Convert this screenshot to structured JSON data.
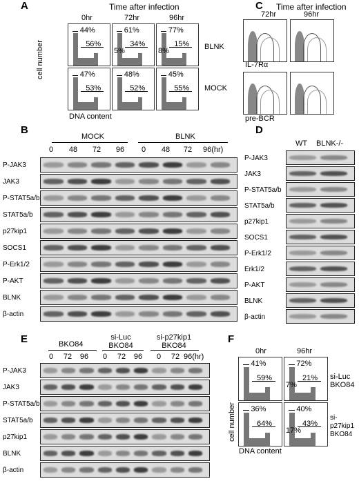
{
  "panel_a": {
    "label": "A",
    "title": "Time after infection",
    "ylabel": "cell number",
    "xlabel": "DNA content",
    "timepoints": [
      "0hr",
      "72hr",
      "96hr"
    ],
    "rows": [
      {
        "name": "BLNK",
        "cells": [
          {
            "top": "44%",
            "mid": "56%",
            "low": ""
          },
          {
            "top": "61%",
            "mid": "34%",
            "low": "5%"
          },
          {
            "top": "77%",
            "mid": "15%",
            "low": "8%"
          }
        ]
      },
      {
        "name": "MOCK",
        "cells": [
          {
            "top": "47%",
            "mid": "53%",
            "low": ""
          },
          {
            "top": "48%",
            "mid": "52%",
            "low": ""
          },
          {
            "top": "45%",
            "mid": "55%",
            "low": ""
          }
        ]
      }
    ]
  },
  "panel_c": {
    "label": "C",
    "title": "Time after infection",
    "timepoints": [
      "72hr",
      "96hr"
    ],
    "markers": [
      "IL-7Rα",
      "pre-BCR"
    ]
  },
  "panel_b": {
    "label": "B",
    "groups": [
      "MOCK",
      "BLNK"
    ],
    "lanes": [
      "0",
      "48",
      "72",
      "96",
      "0",
      "48",
      "72",
      "96(hr)"
    ],
    "proteins": [
      "P-JAK3",
      "JAK3",
      "P-STAT5a/b",
      "STAT5a/b",
      "p27kip1",
      "SOCS1",
      "P-Erk1/2",
      "P-AKT",
      "BLNK",
      "β-actin"
    ]
  },
  "panel_d": {
    "label": "D",
    "lanes": [
      "WT",
      "BLNK-/-"
    ],
    "proteins": [
      "P-JAK3",
      "JAK3",
      "P-STAT5a/b",
      "STAT5a/b",
      "p27kip1",
      "SOCS1",
      "P-Erk1/2",
      "Erk1/2",
      "P-AKT",
      "BLNK",
      "β-actin"
    ]
  },
  "panel_e": {
    "label": "E",
    "groups": [
      "BKO84",
      "si-Luc BKO84",
      "si-p27kip1 BKO84"
    ],
    "lanes": [
      "0",
      "72",
      "96",
      "0",
      "72",
      "96",
      "0",
      "72",
      "96(hr)"
    ],
    "proteins": [
      "P-JAK3",
      "JAK3",
      "P-STAT5a/b",
      "STAT5a/b",
      "p27kip1",
      "BLNK",
      "β-actin"
    ]
  },
  "panel_f": {
    "label": "F",
    "ylabel": "cell number",
    "xlabel": "DNA content",
    "timepoints": [
      "0hr",
      "96hr"
    ],
    "rows": [
      {
        "name": "si-Luc BKO84",
        "cells": [
          {
            "top": "41%",
            "mid": "59%",
            "low": ""
          },
          {
            "top": "72%",
            "mid": "21%",
            "low": "7%"
          }
        ]
      },
      {
        "name": "si-p27kip1 BKO84",
        "cells": [
          {
            "top": "36%",
            "mid": "64%",
            "low": ""
          },
          {
            "top": "40%",
            "mid": "43%",
            "low": "17%"
          }
        ]
      }
    ]
  }
}
